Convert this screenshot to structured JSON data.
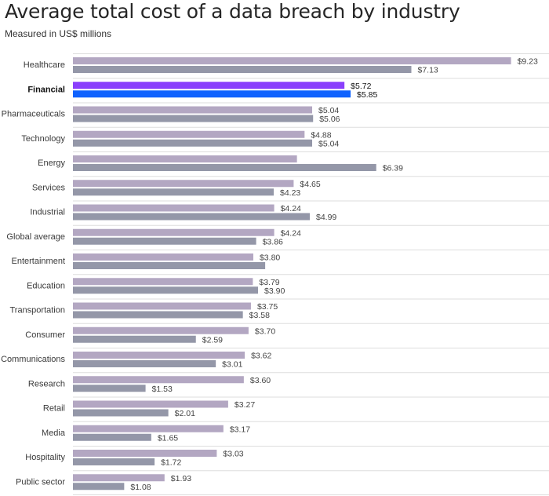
{
  "title": "Average total cost of a data breach by industry",
  "subtitle": "Measured in US$ millions",
  "colors": {
    "prior": "#b3a7c2",
    "current": "#9497a8",
    "highlight_prior": "#8a3ffc",
    "highlight_current": "#0f62fe",
    "grid": "#dddddd"
  },
  "chart_data": {
    "type": "bar",
    "orientation": "horizontal",
    "title": "Average total cost of a data breach by industry",
    "subtitle": "Measured in US$ millions",
    "highlight": "Financial",
    "categories": [
      "Healthcare",
      "Financial",
      "Pharmaceuticals",
      "Technology",
      "Energy",
      "Services",
      "Industrial",
      "Global average",
      "Entertainment",
      "Education",
      "Transportation",
      "Consumer",
      "Communications",
      "Research",
      "Retail",
      "Media",
      "Hospitality",
      "Public sector"
    ],
    "series": [
      {
        "values": [
          9.23,
          5.72,
          5.04,
          4.88,
          4.72,
          4.65,
          4.24,
          4.24,
          3.8,
          3.79,
          3.75,
          3.7,
          3.62,
          3.6,
          3.27,
          3.17,
          3.03,
          1.93
        ],
        "labels": [
          "$9.23",
          "$5.72",
          "$5.04",
          "$4.88",
          "",
          "$4.65",
          "$4.24",
          "$4.24",
          "$3.80",
          "$3.79",
          "$3.75",
          "$3.70",
          "$3.62",
          "$3.60",
          "$3.27",
          "$3.17",
          "$3.03",
          "$1.93"
        ]
      },
      {
        "values": [
          7.13,
          5.85,
          5.06,
          5.04,
          6.39,
          4.23,
          4.99,
          3.86,
          4.05,
          3.9,
          3.58,
          2.59,
          3.01,
          1.53,
          2.01,
          1.65,
          1.72,
          1.08
        ],
        "labels": [
          "$7.13",
          "$5.85",
          "$5.06",
          "$5.04",
          "$6.39",
          "$4.23",
          "$4.99",
          "$3.86",
          "",
          "$3.90",
          "$3.58",
          "$2.59",
          "$3.01",
          "$1.53",
          "$2.01",
          "$1.65",
          "$1.72",
          "$1.08"
        ]
      }
    ],
    "xlim": [
      0,
      10.03
    ],
    "grid": true
  }
}
